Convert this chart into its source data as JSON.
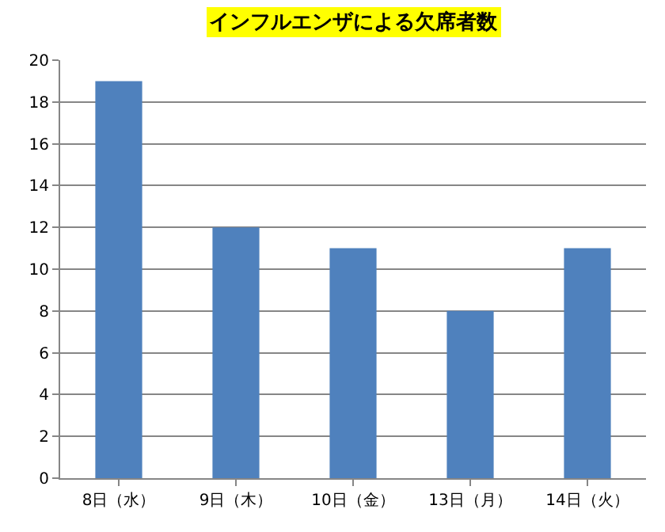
{
  "chart_data": {
    "type": "bar",
    "title": "インフルエンザによる欠席者数",
    "categories": [
      "8日（水）",
      "9日（木）",
      "10日（金）",
      "13日（月）",
      "14日（火）"
    ],
    "values": [
      19,
      12,
      11,
      8,
      11
    ],
    "color": "#4f81bd",
    "ylim": [
      0,
      20
    ],
    "yticks": [
      0,
      2,
      4,
      6,
      8,
      10,
      12,
      14,
      16,
      18,
      20
    ],
    "grid": "y"
  }
}
